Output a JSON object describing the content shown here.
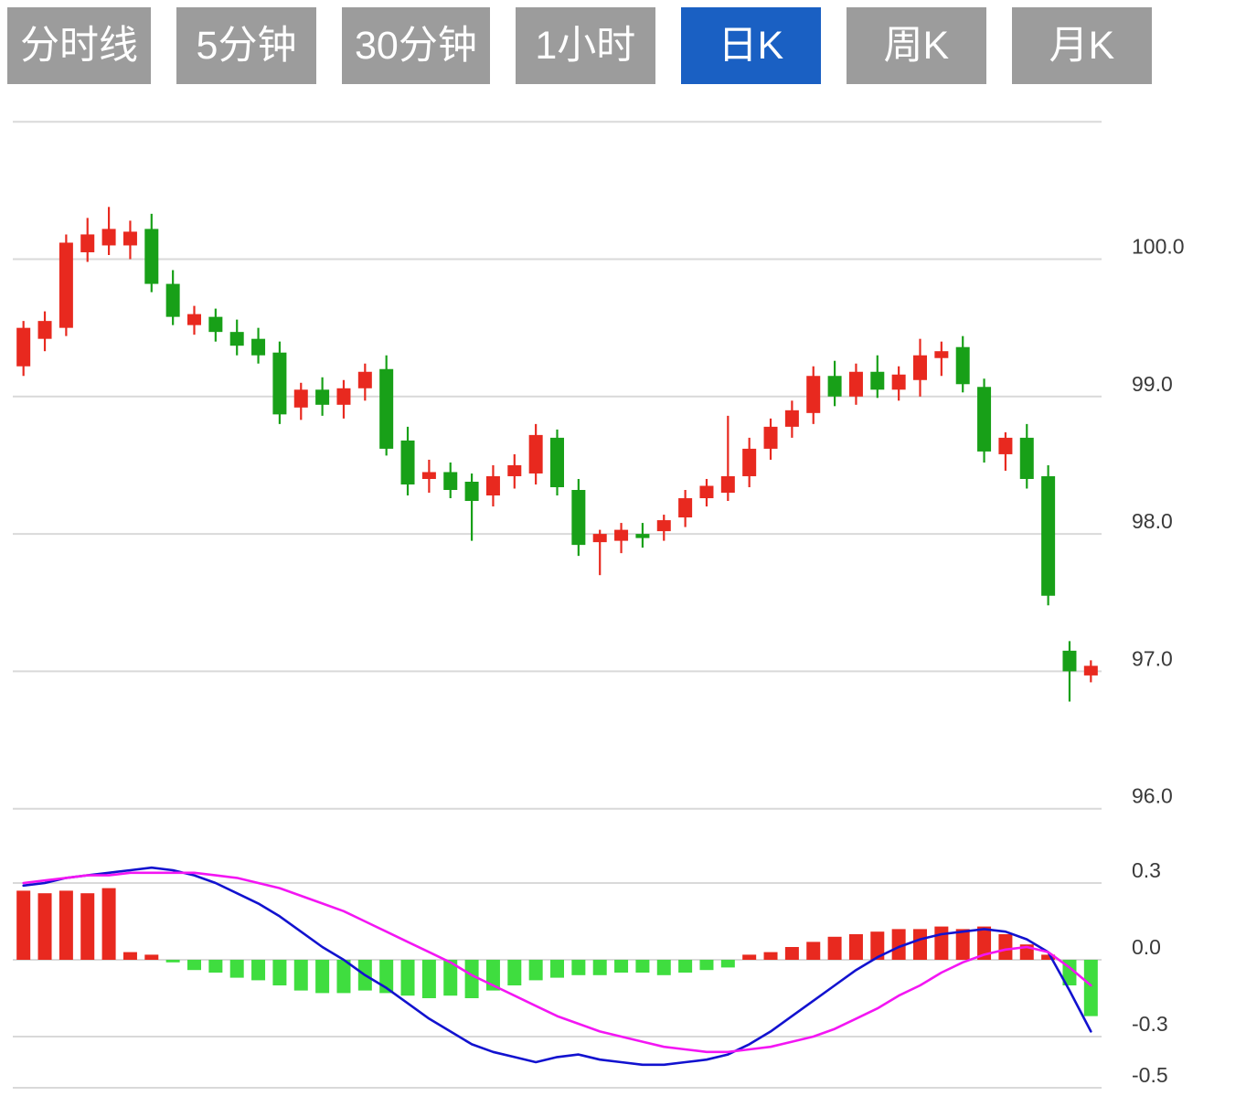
{
  "tabs": {
    "items": [
      {
        "label": "分时线"
      },
      {
        "label": "5分钟"
      },
      {
        "label": "30分钟"
      },
      {
        "label": "1小时"
      },
      {
        "label": "日K"
      },
      {
        "label": "周K"
      },
      {
        "label": "月K"
      }
    ],
    "active_index": 4
  },
  "colors": {
    "up": "#e8291f",
    "down": "#18a018",
    "macd_up": "#e8291f",
    "macd_down": "#3fdd3f",
    "dif_line": "#1212cf",
    "dea_line": "#f316f3",
    "grid": "#d9d9d9",
    "axis_text": "#3a3a3a",
    "tab_bg": "#9c9c9c",
    "tab_active_bg": "#1a60c3",
    "tab_text": "#ffffff"
  },
  "chart_data": {
    "type": "candlestick+macd",
    "legend_position": "none",
    "grid": true,
    "price_axis": {
      "grid_values": [
        101.0,
        100.0,
        99.0,
        98.0,
        97.0,
        96.0
      ],
      "ticks": [
        {
          "label": "100.0",
          "value": 100.0
        },
        {
          "label": "99.0",
          "value": 99.0
        },
        {
          "label": "98.0",
          "value": 98.0
        },
        {
          "label": "97.0",
          "value": 97.0
        },
        {
          "label": "96.0",
          "value": 96.0
        }
      ],
      "range": [
        95.9,
        101.0
      ]
    },
    "macd_axis": {
      "ticks": [
        {
          "label": "0.3",
          "value": 0.3
        },
        {
          "label": "0.0",
          "value": 0.0
        },
        {
          "label": "-0.3",
          "value": -0.3
        },
        {
          "label": "-0.5",
          "value": -0.5
        }
      ],
      "range": [
        -0.52,
        0.42
      ]
    },
    "candles": [
      [
        99.22,
        99.55,
        99.15,
        99.5
      ],
      [
        99.42,
        99.62,
        99.33,
        99.55
      ],
      [
        99.5,
        100.18,
        99.44,
        100.12
      ],
      [
        100.05,
        100.3,
        99.98,
        100.18
      ],
      [
        100.1,
        100.38,
        100.03,
        100.22
      ],
      [
        100.1,
        100.28,
        100.0,
        100.2
      ],
      [
        100.22,
        100.33,
        99.76,
        99.82
      ],
      [
        99.82,
        99.92,
        99.52,
        99.58
      ],
      [
        99.52,
        99.66,
        99.45,
        99.6
      ],
      [
        99.58,
        99.64,
        99.4,
        99.47
      ],
      [
        99.47,
        99.56,
        99.3,
        99.37
      ],
      [
        99.42,
        99.5,
        99.24,
        99.3
      ],
      [
        99.32,
        99.4,
        98.8,
        98.87
      ],
      [
        98.92,
        99.1,
        98.83,
        99.05
      ],
      [
        99.05,
        99.14,
        98.86,
        98.94
      ],
      [
        98.94,
        99.12,
        98.84,
        99.06
      ],
      [
        99.06,
        99.24,
        98.97,
        99.18
      ],
      [
        99.2,
        99.3,
        98.57,
        98.62
      ],
      [
        98.68,
        98.78,
        98.28,
        98.36
      ],
      [
        98.4,
        98.54,
        98.3,
        98.45
      ],
      [
        98.45,
        98.52,
        98.26,
        98.32
      ],
      [
        98.38,
        98.44,
        97.95,
        98.24
      ],
      [
        98.28,
        98.5,
        98.2,
        98.42
      ],
      [
        98.42,
        98.58,
        98.33,
        98.5
      ],
      [
        98.44,
        98.8,
        98.36,
        98.72
      ],
      [
        98.7,
        98.76,
        98.28,
        98.34
      ],
      [
        98.32,
        98.4,
        97.84,
        97.92
      ],
      [
        97.94,
        98.03,
        97.7,
        98.0
      ],
      [
        97.95,
        98.08,
        97.86,
        98.03
      ],
      [
        98.0,
        98.08,
        97.9,
        97.97
      ],
      [
        98.02,
        98.14,
        97.95,
        98.1
      ],
      [
        98.12,
        98.32,
        98.05,
        98.26
      ],
      [
        98.26,
        98.4,
        98.2,
        98.35
      ],
      [
        98.3,
        98.86,
        98.24,
        98.42
      ],
      [
        98.42,
        98.7,
        98.34,
        98.62
      ],
      [
        98.62,
        98.84,
        98.54,
        98.78
      ],
      [
        98.78,
        98.97,
        98.7,
        98.9
      ],
      [
        98.88,
        99.22,
        98.8,
        99.15
      ],
      [
        99.15,
        99.26,
        98.93,
        99.0
      ],
      [
        99.0,
        99.24,
        98.94,
        99.18
      ],
      [
        99.18,
        99.3,
        98.99,
        99.05
      ],
      [
        99.05,
        99.22,
        98.97,
        99.16
      ],
      [
        99.12,
        99.42,
        99.0,
        99.3
      ],
      [
        99.28,
        99.4,
        99.15,
        99.33
      ],
      [
        99.36,
        99.44,
        99.03,
        99.09
      ],
      [
        99.07,
        99.13,
        98.52,
        98.6
      ],
      [
        98.58,
        98.74,
        98.46,
        98.7
      ],
      [
        98.7,
        98.8,
        98.33,
        98.4
      ],
      [
        98.42,
        98.5,
        97.48,
        97.55
      ],
      [
        97.15,
        97.22,
        96.78,
        97.0
      ],
      [
        96.97,
        97.08,
        96.92,
        97.04
      ]
    ],
    "macd": {
      "histogram": [
        0.27,
        0.26,
        0.27,
        0.26,
        0.28,
        0.03,
        0.02,
        -0.01,
        -0.04,
        -0.05,
        -0.07,
        -0.08,
        -0.1,
        -0.12,
        -0.13,
        -0.13,
        -0.12,
        -0.13,
        -0.14,
        -0.15,
        -0.14,
        -0.15,
        -0.12,
        -0.1,
        -0.08,
        -0.07,
        -0.06,
        -0.06,
        -0.05,
        -0.05,
        -0.06,
        -0.05,
        -0.04,
        -0.03,
        0.02,
        0.03,
        0.05,
        0.07,
        0.09,
        0.1,
        0.11,
        0.12,
        0.12,
        0.13,
        0.12,
        0.13,
        0.1,
        0.06,
        0.02,
        -0.1,
        -0.22
      ],
      "dif": [
        0.29,
        0.3,
        0.32,
        0.33,
        0.34,
        0.35,
        0.36,
        0.35,
        0.33,
        0.3,
        0.26,
        0.22,
        0.17,
        0.11,
        0.05,
        0.0,
        -0.06,
        -0.11,
        -0.17,
        -0.23,
        -0.28,
        -0.33,
        -0.36,
        -0.38,
        -0.4,
        -0.38,
        -0.37,
        -0.39,
        -0.4,
        -0.41,
        -0.41,
        -0.4,
        -0.39,
        -0.37,
        -0.33,
        -0.28,
        -0.22,
        -0.16,
        -0.1,
        -0.04,
        0.01,
        0.05,
        0.08,
        0.1,
        0.11,
        0.12,
        0.11,
        0.08,
        0.03,
        -0.12,
        -0.28
      ],
      "dea": [
        0.3,
        0.31,
        0.32,
        0.33,
        0.33,
        0.34,
        0.34,
        0.34,
        0.34,
        0.33,
        0.32,
        0.3,
        0.28,
        0.25,
        0.22,
        0.19,
        0.15,
        0.11,
        0.07,
        0.03,
        -0.01,
        -0.06,
        -0.1,
        -0.14,
        -0.18,
        -0.22,
        -0.25,
        -0.28,
        -0.3,
        -0.32,
        -0.34,
        -0.35,
        -0.36,
        -0.36,
        -0.35,
        -0.34,
        -0.32,
        -0.3,
        -0.27,
        -0.23,
        -0.19,
        -0.14,
        -0.1,
        -0.05,
        -0.01,
        0.02,
        0.04,
        0.05,
        0.03,
        -0.03,
        -0.1
      ]
    }
  }
}
